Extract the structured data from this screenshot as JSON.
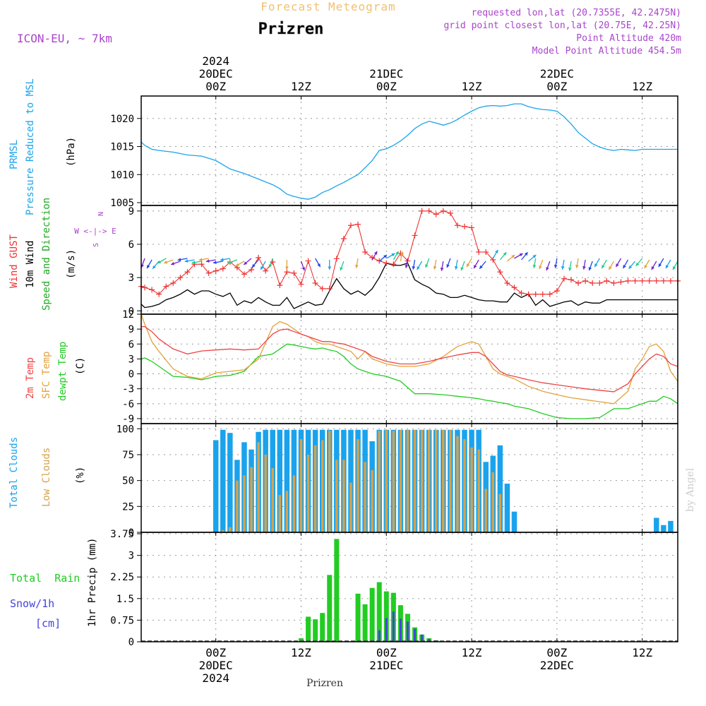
{
  "header": {
    "suptitle": "Forecast Meteogram",
    "location": "Prizren",
    "model": "ICON-EU, ~ 7km",
    "requested": "requested lon,lat (20.7355E, 42.2475N)",
    "gridpoint": "grid point closest lon,lat (20.75E, 42.25N)",
    "point_alt": "Point Altitude 420m",
    "model_alt": "Model Point Altitude 454.5m",
    "footer": "Prizren",
    "credit": "by Angel"
  },
  "colors": {
    "pressure": "#1aa3ec",
    "gust": "#ee3333",
    "wind": "#000000",
    "temp": "#ee4444",
    "sfc": "#e3a23b",
    "dewpt": "#22cc22",
    "total_clouds": "#1aa3ec",
    "low_clouds": "#d4a24c",
    "rain": "#22cc22",
    "snow": "#4444dd",
    "purple": "#aa44cc",
    "grid": "#999999"
  },
  "time_axis": {
    "top": [
      {
        "h": 24,
        "lines": [
          "2024",
          "20DEC",
          "00Z"
        ]
      },
      {
        "h": 36,
        "lines": [
          "12Z"
        ]
      },
      {
        "h": 48,
        "lines": [
          "21DEC",
          "00Z"
        ]
      },
      {
        "h": 60,
        "lines": [
          "12Z"
        ]
      },
      {
        "h": 72,
        "lines": [
          "22DEC",
          "00Z"
        ]
      },
      {
        "h": 84,
        "lines": [
          "12Z"
        ]
      }
    ],
    "bottom": [
      {
        "h": 24,
        "lines": [
          "00Z",
          "20DEC",
          "2024"
        ]
      },
      {
        "h": 36,
        "lines": [
          "12Z"
        ]
      },
      {
        "h": 48,
        "lines": [
          "00Z",
          "21DEC"
        ]
      },
      {
        "h": 60,
        "lines": [
          "12Z"
        ]
      },
      {
        "h": 72,
        "lines": [
          "00Z",
          "22DEC"
        ]
      },
      {
        "h": 84,
        "lines": [
          "12Z"
        ]
      }
    ]
  },
  "chart_data": [
    {
      "type": "line",
      "id": "pressure",
      "labels": [
        "PRMSL",
        "Pressure Reduced to MSL",
        "(hPa)"
      ],
      "ylim": [
        1004.5,
        1024
      ],
      "yticks": [
        1005,
        1010,
        1015,
        1020
      ],
      "x": [
        13.5,
        14,
        15,
        16,
        18,
        20,
        22,
        24,
        26,
        28,
        30,
        32,
        33,
        34,
        35,
        36,
        37,
        38,
        39,
        40,
        41,
        42,
        43,
        44,
        45,
        46,
        47,
        48,
        49,
        50,
        51,
        52,
        53,
        54,
        55,
        56,
        57,
        58,
        59,
        60,
        61,
        62,
        63,
        64,
        65,
        66,
        67,
        68,
        69,
        70,
        71,
        72,
        73,
        74,
        75,
        76,
        77,
        78,
        79,
        80,
        81,
        82,
        83,
        84,
        85,
        86,
        87,
        88,
        89
      ],
      "values": [
        1015.8,
        1015.2,
        1014.5,
        1014.3,
        1014.0,
        1013.5,
        1013.3,
        1012.5,
        1011.0,
        1010.2,
        1009.2,
        1008.2,
        1007.5,
        1006.5,
        1006.1,
        1005.8,
        1005.6,
        1006.0,
        1006.8,
        1007.3,
        1008.0,
        1008.6,
        1009.3,
        1010.0,
        1011.2,
        1012.5,
        1014.3,
        1014.6,
        1015.2,
        1016.0,
        1017.0,
        1018.2,
        1019.0,
        1019.5,
        1019.2,
        1018.8,
        1019.2,
        1019.8,
        1020.6,
        1021.3,
        1021.9,
        1022.2,
        1022.3,
        1022.2,
        1022.3,
        1022.6,
        1022.6,
        1022.1,
        1021.8,
        1021.6,
        1021.5,
        1021.3,
        1020.3,
        1019.0,
        1017.5,
        1016.5,
        1015.5,
        1014.9,
        1014.5,
        1014.3,
        1014.5,
        1014.4,
        1014.3,
        1014.5,
        1014.5,
        1014.5,
        1014.5,
        1014.5,
        1014.5
      ]
    },
    {
      "type": "line",
      "id": "wind",
      "labels": [
        "Wind GUST",
        "10m Wind",
        "Speed and Direction",
        "(m/s)"
      ],
      "compass": [
        "N",
        "W <-|-> E",
        "S"
      ],
      "ylim": [
        -0.3,
        9.5
      ],
      "yticks": [
        0,
        3,
        6,
        9
      ],
      "x": [
        13.5,
        14,
        15,
        16,
        17,
        18,
        19,
        20,
        21,
        22,
        23,
        24,
        25,
        26,
        27,
        28,
        29,
        30,
        31,
        32,
        33,
        34,
        35,
        36,
        37,
        38,
        39,
        40,
        41,
        42,
        43,
        44,
        45,
        46,
        47,
        48,
        49,
        50,
        51,
        52,
        53,
        54,
        55,
        56,
        57,
        58,
        59,
        60,
        61,
        62,
        63,
        64,
        65,
        66,
        67,
        68,
        69,
        70,
        71,
        72,
        73,
        74,
        75,
        76,
        77,
        78,
        79,
        80,
        81,
        82,
        83,
        84,
        85,
        86,
        87,
        88,
        89
      ],
      "gust": [
        2.2,
        2.1,
        1.9,
        1.5,
        2.2,
        2.5,
        3.0,
        3.5,
        4.2,
        4.2,
        3.4,
        3.6,
        3.8,
        4.4,
        3.9,
        3.3,
        3.7,
        4.8,
        3.6,
        4.4,
        2.3,
        3.5,
        3.4,
        2.4,
        4.5,
        2.5,
        2.0,
        2.0,
        4.7,
        6.5,
        7.7,
        7.8,
        5.3,
        4.8,
        4.5,
        4.3,
        4.2,
        5.2,
        4.5,
        6.8,
        9.0,
        9.0,
        8.7,
        9.0,
        8.8,
        7.7,
        7.6,
        7.5,
        5.3,
        5.3,
        4.6,
        3.5,
        2.5,
        2.1,
        1.6,
        1.5,
        1.5,
        1.5,
        1.5,
        1.8,
        2.9,
        2.8,
        2.5,
        2.7,
        2.5,
        2.5,
        2.7,
        2.5,
        2.6,
        2.7,
        2.7,
        2.7,
        2.7,
        2.7,
        2.7,
        2.7,
        2.7
      ],
      "wind10": [
        0.6,
        0.3,
        0.4,
        0.6,
        1.0,
        1.2,
        1.5,
        1.9,
        1.5,
        1.8,
        1.8,
        1.5,
        1.3,
        1.6,
        0.5,
        0.9,
        0.7,
        1.2,
        0.8,
        0.5,
        0.5,
        1.2,
        0.2,
        0.5,
        0.8,
        0.5,
        0.6,
        1.8,
        2.9,
        2.0,
        1.5,
        1.8,
        1.4,
        2.0,
        3.0,
        4.3,
        4.1,
        4.1,
        4.3,
        2.8,
        2.4,
        2.1,
        1.6,
        1.5,
        1.2,
        1.2,
        1.4,
        1.2,
        1.0,
        0.9,
        0.9,
        0.8,
        0.8,
        1.6,
        1.2,
        1.5,
        0.5,
        1.0,
        0.4,
        0.6,
        0.8,
        0.9,
        0.5,
        0.8,
        0.7,
        0.7,
        1.0,
        1.0,
        1.0,
        1.0,
        1.0,
        1.0,
        1.0,
        1.0,
        1.0,
        1.0,
        1.0
      ],
      "arrow_x": [
        14,
        15,
        16,
        17,
        18,
        19,
        20,
        21,
        22,
        23,
        24,
        25,
        26,
        27,
        28,
        29,
        30,
        31,
        32,
        34,
        36,
        38,
        40,
        42,
        44,
        46,
        47,
        48,
        49,
        50,
        51,
        52,
        53,
        54,
        55,
        56,
        57,
        58,
        59,
        60,
        61,
        62,
        63,
        64,
        65,
        66,
        67,
        68,
        69,
        70,
        71,
        72,
        73,
        74,
        75,
        76,
        77,
        78,
        79,
        80,
        81,
        82,
        83,
        84,
        85,
        86,
        87,
        88,
        89
      ],
      "arrow_dir": [
        250,
        240,
        230,
        210,
        200,
        200,
        190,
        190,
        190,
        190,
        190,
        190,
        190,
        200,
        210,
        220,
        230,
        240,
        250,
        270,
        290,
        300,
        270,
        250,
        260,
        60,
        40,
        30,
        60,
        80,
        260,
        260,
        240,
        250,
        260,
        260,
        250,
        260,
        250,
        240,
        240,
        230,
        60,
        50,
        40,
        30,
        50,
        40,
        260,
        250,
        250,
        260,
        260,
        260,
        260,
        260,
        250,
        240,
        240,
        240,
        240,
        240,
        230,
        230,
        240,
        240,
        240,
        240,
        240
      ]
    },
    {
      "type": "line",
      "id": "temperature",
      "labels": [
        "2m Temp",
        "SFC Temp",
        "dewpt Temp",
        "(C)"
      ],
      "ylim": [
        -10,
        12
      ],
      "yticks": [
        12,
        9,
        6,
        3,
        0,
        -3,
        -6,
        -9
      ],
      "x": [
        13.5,
        14,
        15,
        16,
        18,
        20,
        22,
        24,
        26,
        28,
        30,
        32,
        33,
        34,
        35,
        36,
        37,
        38,
        39,
        40,
        41,
        42,
        43,
        44,
        45,
        46,
        48,
        50,
        52,
        54,
        56,
        58,
        60,
        61,
        62,
        63,
        64,
        65,
        66,
        68,
        70,
        72,
        74,
        76,
        78,
        80,
        82,
        83,
        84,
        85,
        86,
        87,
        88,
        89
      ],
      "t2m": [
        9.5,
        9.5,
        8.5,
        7.0,
        5.0,
        4.0,
        4.6,
        4.8,
        5.0,
        4.8,
        5.0,
        8.0,
        8.8,
        9.0,
        8.5,
        8.0,
        7.5,
        7.0,
        6.5,
        6.5,
        6.2,
        6.0,
        5.5,
        5.0,
        4.5,
        3.5,
        2.5,
        2.0,
        2.0,
        2.5,
        3.2,
        3.8,
        4.3,
        4.3,
        3.5,
        2.0,
        0.5,
        -0.2,
        -0.5,
        -1.2,
        -1.8,
        -2.2,
        -2.6,
        -3.0,
        -3.3,
        -3.6,
        -2.0,
        0.0,
        1.5,
        3.0,
        4.0,
        3.5,
        2.0,
        1.5
      ],
      "sfc": [
        12.0,
        10.0,
        6.5,
        4.5,
        1.0,
        -0.5,
        -1.0,
        0.2,
        0.5,
        0.8,
        3.0,
        9.5,
        10.5,
        10.0,
        9.0,
        8.0,
        7.5,
        6.5,
        6.0,
        6.0,
        5.5,
        5.0,
        4.5,
        3.0,
        4.5,
        3.0,
        2.0,
        1.5,
        1.5,
        2.0,
        3.5,
        5.5,
        6.5,
        6.0,
        3.5,
        1.0,
        0.0,
        -0.5,
        -1.0,
        -2.5,
        -3.5,
        -4.2,
        -4.8,
        -5.2,
        -5.6,
        -6.0,
        -3.5,
        1.0,
        3.0,
        5.5,
        6.0,
        4.5,
        0.5,
        -1.5
      ],
      "dewpt": [
        3.0,
        3.2,
        2.5,
        1.5,
        -0.5,
        -0.7,
        -1.2,
        -0.5,
        -0.3,
        0.5,
        3.5,
        4.0,
        5.0,
        6.0,
        5.8,
        5.5,
        5.2,
        5.0,
        5.2,
        4.8,
        4.5,
        3.5,
        2.0,
        1.0,
        0.5,
        0.0,
        -0.5,
        -1.5,
        -4.0,
        -4.0,
        -4.2,
        -4.5,
        -4.8,
        -5.0,
        -5.3,
        -5.5,
        -5.8,
        -6.0,
        -6.5,
        -7.0,
        -8.0,
        -8.8,
        -9.0,
        -9.0,
        -8.8,
        -7.0,
        -7.0,
        -6.5,
        -6.0,
        -5.5,
        -5.5,
        -4.5,
        -5.0,
        -6.0
      ]
    },
    {
      "type": "bar",
      "id": "clouds",
      "labels": [
        "Total Clouds",
        "Low Clouds",
        "(%)"
      ],
      "ylim": [
        0,
        105
      ],
      "yticks": [
        0,
        25,
        50,
        75,
        100
      ],
      "x": [
        24,
        25,
        26,
        27,
        28,
        29,
        30,
        31,
        32,
        33,
        34,
        35,
        36,
        37,
        38,
        39,
        40,
        41,
        42,
        43,
        44,
        45,
        46,
        47,
        48,
        49,
        50,
        51,
        52,
        53,
        54,
        55,
        56,
        57,
        58,
        59,
        60,
        61,
        62,
        63,
        64,
        65,
        66,
        67,
        68,
        69,
        70,
        71,
        72,
        73,
        74,
        75,
        76,
        77,
        78,
        79,
        80,
        81,
        82,
        83,
        84,
        85,
        86,
        87,
        88
      ],
      "total": [
        89,
        99,
        96,
        70,
        87,
        80,
        97,
        99,
        99,
        99,
        99,
        99,
        99,
        99,
        99,
        99,
        99,
        99,
        99,
        99,
        99,
        99,
        88,
        99,
        99,
        99,
        99,
        99,
        99,
        99,
        99,
        99,
        99,
        99,
        99,
        99,
        99,
        99,
        68,
        74,
        84,
        47,
        20,
        0,
        0,
        0,
        0,
        0,
        0,
        0,
        0,
        0,
        0,
        0,
        0,
        0,
        0,
        0,
        0,
        0,
        0,
        0,
        14,
        7,
        11
      ],
      "low": [
        0,
        2,
        5,
        50,
        55,
        63,
        87,
        75,
        62,
        36,
        40,
        55,
        90,
        75,
        84,
        89,
        98,
        70,
        70,
        48,
        90,
        68,
        60,
        98,
        99,
        98,
        99,
        99,
        99,
        99,
        99,
        99,
        99,
        99,
        93,
        90,
        82,
        80,
        42,
        58,
        37,
        0,
        0,
        0,
        0,
        0,
        0,
        0,
        0,
        0,
        0,
        0,
        0,
        0,
        0,
        0,
        0,
        0,
        0,
        0,
        0,
        0,
        0,
        0,
        0
      ]
    },
    {
      "type": "bar",
      "id": "precip",
      "labels": [
        "Total  Rain",
        "Snow/1h",
        "[cm]",
        "1hr Precip (mm)"
      ],
      "ylim": [
        0,
        3.8
      ],
      "yticks": [
        0,
        0.75,
        1.5,
        2.25,
        3,
        3.75
      ],
      "ytick_labels": [
        "0",
        "0.75",
        "1.5",
        "2.25",
        "3",
        "3.75"
      ],
      "x": [
        36,
        37,
        38,
        39,
        40,
        41,
        44,
        45,
        46,
        47,
        48,
        49,
        50,
        51,
        52,
        53,
        54,
        55,
        56
      ],
      "rain": [
        0.12,
        0.87,
        0.78,
        1.0,
        2.32,
        3.57,
        1.67,
        1.3,
        1.87,
        2.07,
        1.75,
        1.7,
        1.27,
        0.97,
        0.5,
        0.25,
        0.12,
        0.05,
        0.0
      ],
      "snow": [
        0,
        0,
        0,
        0,
        0,
        0,
        0,
        0,
        0.05,
        0.4,
        0.82,
        1.05,
        0.8,
        0.7,
        0.45,
        0.25,
        0.1,
        0.05,
        0
      ]
    }
  ]
}
